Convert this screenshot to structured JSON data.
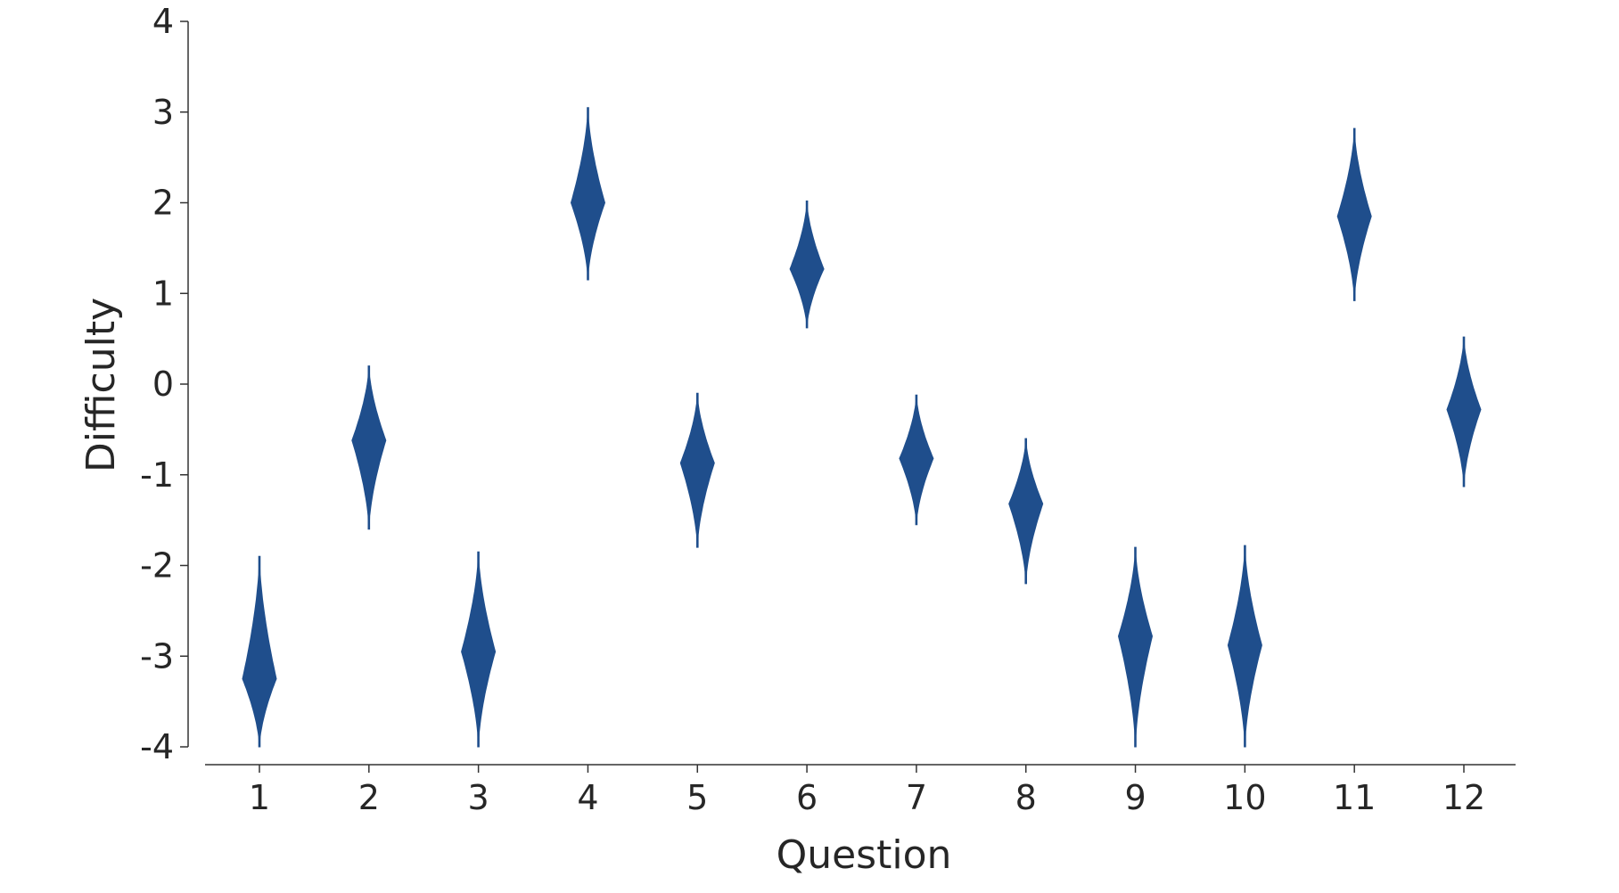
{
  "chart_data": {
    "type": "violin",
    "xlabel": "Question",
    "ylabel": "Difficulty",
    "ylim": [
      -4,
      4
    ],
    "yticks": [
      4,
      3,
      2,
      1,
      0,
      -1,
      -2,
      -3,
      -4
    ],
    "ytick_labels": [
      "4",
      "3",
      "2",
      "1",
      "0",
      "-1",
      "-2",
      "-3",
      "-4"
    ],
    "categories": [
      "1",
      "2",
      "3",
      "4",
      "5",
      "6",
      "7",
      "8",
      "9",
      "10",
      "11",
      "12"
    ],
    "color": "#1f4e8c",
    "grid": false,
    "series": [
      {
        "category": "1",
        "center": -3.25,
        "min": -4.0,
        "max": -1.9
      },
      {
        "category": "2",
        "center": -0.62,
        "min": -1.6,
        "max": 0.2
      },
      {
        "category": "3",
        "center": -2.95,
        "min": -4.0,
        "max": -1.85
      },
      {
        "category": "4",
        "center": 2.0,
        "min": 1.15,
        "max": 3.05
      },
      {
        "category": "5",
        "center": -0.87,
        "min": -1.8,
        "max": -0.1
      },
      {
        "category": "6",
        "center": 1.27,
        "min": 0.62,
        "max": 2.02
      },
      {
        "category": "7",
        "center": -0.82,
        "min": -1.55,
        "max": -0.12
      },
      {
        "category": "8",
        "center": -1.32,
        "min": -2.2,
        "max": -0.6
      },
      {
        "category": "9",
        "center": -2.78,
        "min": -4.0,
        "max": -1.8
      },
      {
        "category": "10",
        "center": -2.88,
        "min": -4.0,
        "max": -1.78
      },
      {
        "category": "11",
        "center": 1.85,
        "min": 0.92,
        "max": 2.82
      },
      {
        "category": "12",
        "center": -0.28,
        "min": -1.13,
        "max": 0.52
      }
    ]
  }
}
